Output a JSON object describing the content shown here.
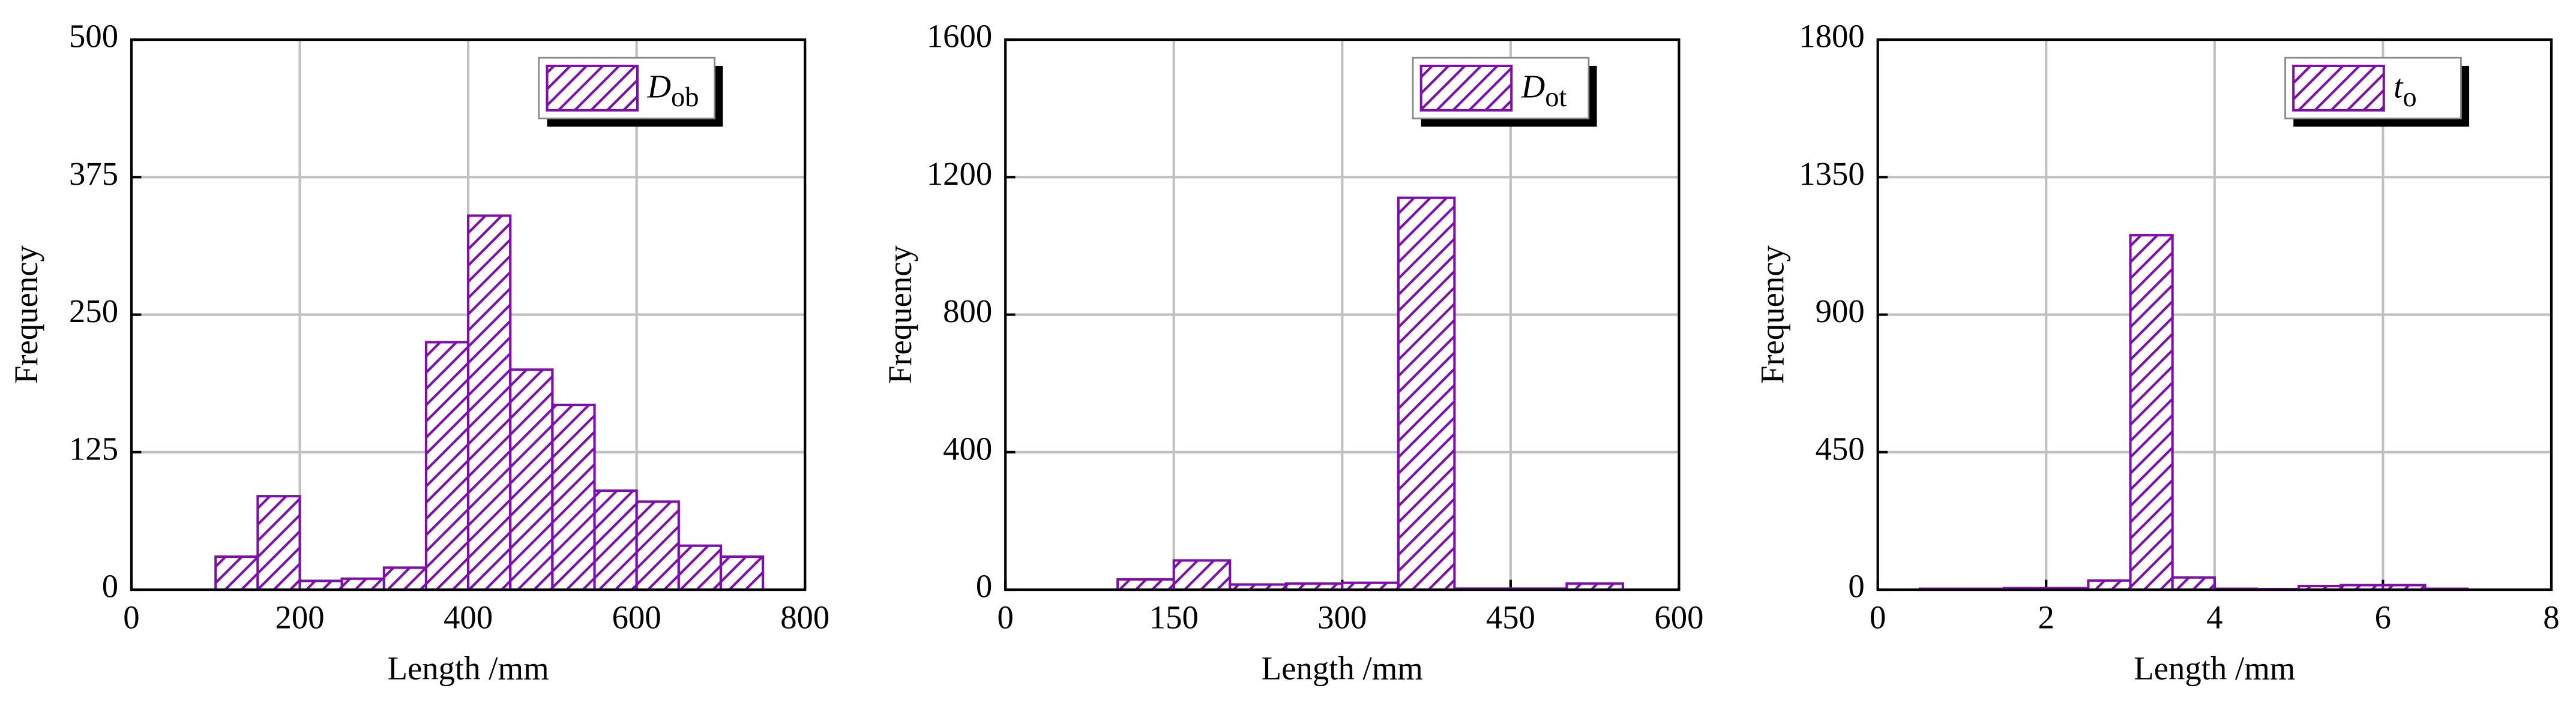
{
  "chart_data": [
    {
      "type": "histogram",
      "xlabel": "Length /mm",
      "ylabel": "Frequency",
      "bins": [
        100,
        150,
        200,
        250,
        300,
        350,
        400,
        450,
        500,
        550,
        600,
        650,
        700,
        750
      ],
      "values": [
        30,
        85,
        8,
        10,
        20,
        225,
        340,
        200,
        168,
        90,
        80,
        40,
        30
      ],
      "color": "#7b0fa8",
      "xlim": [
        0,
        800
      ],
      "ylim": [
        0,
        500
      ],
      "xticks": [
        0,
        200,
        400,
        600,
        800
      ],
      "yticks": [
        0,
        125,
        250,
        375,
        500
      ],
      "grid": true,
      "legend_position": "upper right",
      "legend": {
        "text": "D",
        "subscript": "ob"
      }
    },
    {
      "type": "histogram",
      "xlabel": "Length /mm",
      "ylabel": "Frequency",
      "bins": [
        100,
        150,
        200,
        250,
        300,
        350,
        400,
        450,
        500,
        550
      ],
      "values": [
        30,
        85,
        15,
        18,
        20,
        1140,
        3,
        3,
        18
      ],
      "color": "#7b0fa8",
      "xlim": [
        0,
        600
      ],
      "ylim": [
        0,
        1600
      ],
      "xticks": [
        0,
        150,
        300,
        450,
        600
      ],
      "yticks": [
        0,
        400,
        800,
        1200,
        1600
      ],
      "grid": true,
      "legend_position": "upper right",
      "legend": {
        "text": "D",
        "subscript": "ot"
      }
    },
    {
      "type": "histogram",
      "xlabel": "Length /mm",
      "ylabel": "Frequency",
      "bins": [
        0.5,
        1,
        1.5,
        2,
        2.5,
        3,
        3.5,
        4,
        4.5,
        5,
        5.5,
        6,
        6.5,
        7
      ],
      "values": [
        3,
        3,
        5,
        5,
        30,
        1160,
        40,
        3,
        2,
        12,
        15,
        15,
        3
      ],
      "color": "#7b0fa8",
      "xlim": [
        0,
        8
      ],
      "ylim": [
        0,
        1800
      ],
      "xticks": [
        0,
        2,
        4,
        6,
        8
      ],
      "yticks": [
        0,
        450,
        900,
        1350,
        1800
      ],
      "grid": true,
      "legend_position": "upper right",
      "legend": {
        "text": "t",
        "subscript": "o"
      }
    }
  ]
}
